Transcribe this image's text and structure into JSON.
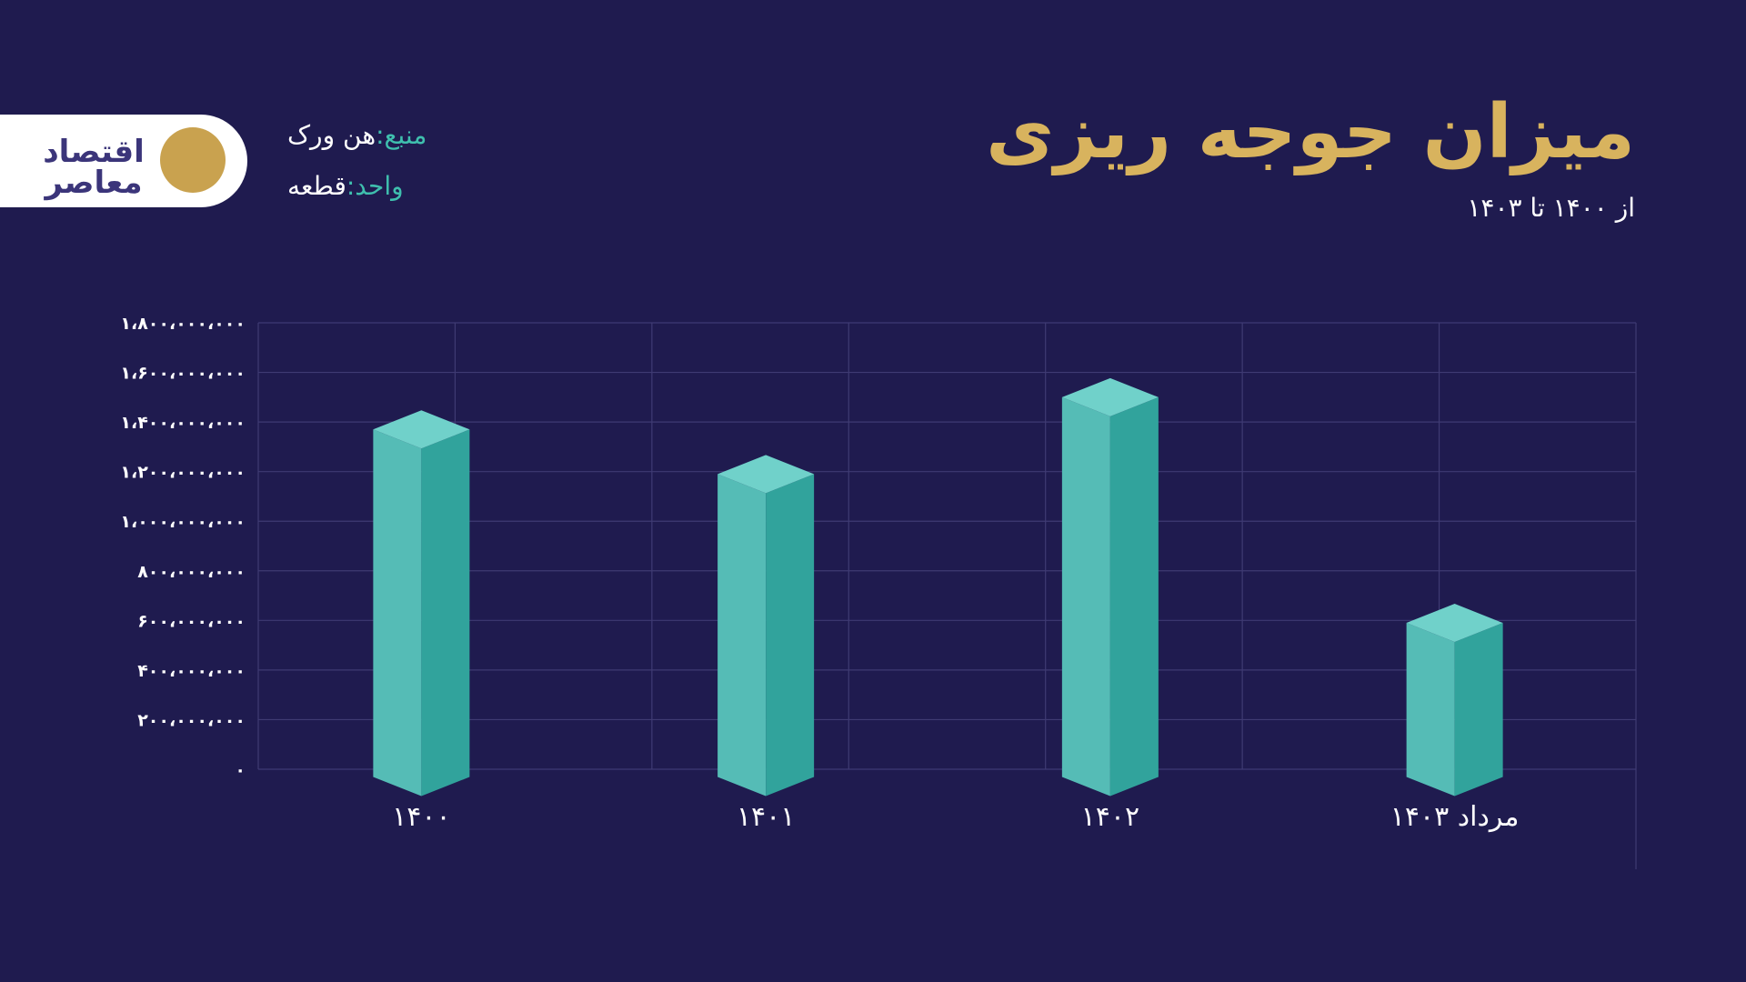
{
  "header": {
    "title": "میزان جوجه ریزی",
    "subtitle": "از ۱۴۰۰ تا ۱۴۰۳",
    "source_key": "منبع:",
    "source_value": "هن ورک",
    "unit_key": "واحد:",
    "unit_value": "قطعه"
  },
  "logo": {
    "text": "اقتصاد معاصر",
    "circle_color": "#c9a24f",
    "text_color": "#3b357a"
  },
  "colors": {
    "background": "#1f1b4f",
    "title": "#d8b35e",
    "bar_front": "#55bcb6",
    "bar_side": "#31a39c",
    "bar_top": "#70d1ca",
    "grid": "#3f3b73",
    "axis_text": "#ffffff",
    "label_key": "#3fbfae"
  },
  "chart_data": {
    "type": "bar",
    "title": "میزان جوجه ریزی",
    "subtitle": "از ۱۴۰۰ تا ۱۴۰۳",
    "categories": [
      "۱۴۰۰",
      "۱۴۰۱",
      "۱۴۰۲",
      "مرداد ۱۴۰۳"
    ],
    "values": [
      1370000000,
      1190000000,
      1500000000,
      590000000
    ],
    "ylim": [
      0,
      1800000000
    ],
    "yticks": [
      0,
      200000000,
      400000000,
      600000000,
      800000000,
      1000000000,
      1200000000,
      1400000000,
      1600000000,
      1800000000
    ],
    "ytick_labels": [
      "۰",
      "۲۰۰،۰۰۰،۰۰۰",
      "۴۰۰،۰۰۰،۰۰۰",
      "۶۰۰،۰۰۰،۰۰۰",
      "۸۰۰،۰۰۰،۰۰۰",
      "۱،۰۰۰،۰۰۰،۰۰۰",
      "۱،۲۰۰،۰۰۰،۰۰۰",
      "۱،۴۰۰،۰۰۰،۰۰۰",
      "۱،۶۰۰،۰۰۰،۰۰۰",
      "۱،۸۰۰،۰۰۰،۰۰۰"
    ],
    "grid": true,
    "legend": "none"
  }
}
